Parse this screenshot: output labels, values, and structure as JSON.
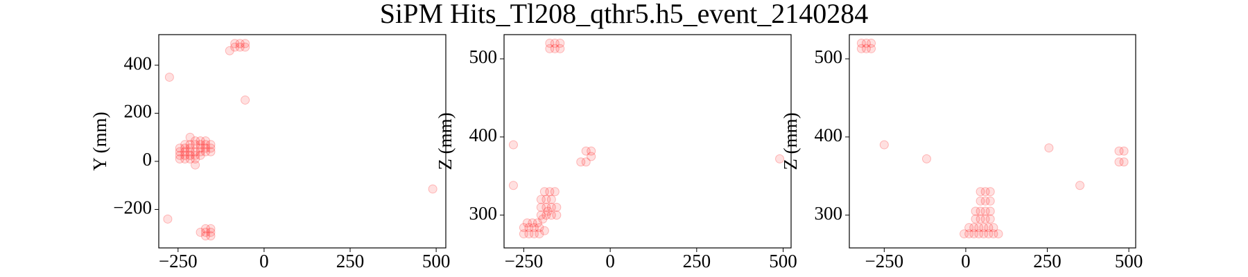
{
  "title": "SiPM Hits_Tl208_qthr5.h5_event_2140284",
  "chart_data": [
    {
      "type": "scatter",
      "ylabel": "Y (mm)",
      "color": "#ff0000",
      "x": [
        -245,
        -245,
        -245,
        -245,
        -230,
        -230,
        -230,
        -230,
        -230,
        -215,
        -215,
        -215,
        -215,
        -215,
        -200,
        -200,
        -200,
        -200,
        -200,
        -185,
        -185,
        -185,
        -185,
        -185,
        -170,
        -170,
        -170,
        -170,
        -155,
        -155,
        -155,
        -200,
        -215,
        -170,
        -170,
        -170,
        -155,
        -155,
        -155,
        -185,
        -85,
        -70,
        -55,
        -85,
        -70,
        -55,
        -100,
        -275,
        -55,
        -280,
        490
      ],
      "values": [
        10,
        25,
        40,
        55,
        10,
        25,
        40,
        55,
        70,
        10,
        25,
        40,
        55,
        70,
        10,
        25,
        40,
        70,
        85,
        25,
        40,
        55,
        70,
        85,
        40,
        55,
        70,
        85,
        40,
        55,
        70,
        -15,
        100,
        -280,
        -295,
        -310,
        -280,
        -295,
        -310,
        -295,
        490,
        490,
        490,
        475,
        475,
        475,
        460,
        350,
        255,
        -240,
        -115
      ],
      "xlim": [
        -306,
        528
      ],
      "xticks": [
        {
          "value": -250,
          "label": "−250"
        },
        0,
        250,
        500
      ],
      "ylim": [
        -360,
        527
      ],
      "yticks": [
        {
          "value": -200,
          "label": "−200"
        },
        0,
        200,
        400
      ]
    },
    {
      "type": "scatter",
      "ylabel": "Z (mm)",
      "color": "#ff0000",
      "x": [
        -250,
        -235,
        -220,
        -205,
        -250,
        -235,
        -220,
        -205,
        -190,
        -240,
        -225,
        -210,
        -200,
        -185,
        -170,
        -155,
        -200,
        -185,
        -170,
        -155,
        -200,
        -185,
        -170,
        -190,
        -175,
        -160,
        -195,
        -180,
        -175,
        -160,
        -145,
        -175,
        -160,
        -145,
        -70,
        -55,
        -85,
        -70,
        -55,
        -280,
        -280,
        490
      ],
      "values": [
        276,
        276,
        276,
        276,
        284,
        284,
        284,
        284,
        280,
        290,
        290,
        290,
        300,
        300,
        300,
        300,
        310,
        310,
        310,
        310,
        320,
        320,
        320,
        330,
        330,
        330,
        295,
        305,
        520,
        520,
        520,
        513,
        513,
        513,
        382,
        382,
        368,
        368,
        375,
        390,
        338,
        372
      ],
      "xlim": [
        -307,
        523
      ],
      "xticks": [
        {
          "value": -250,
          "label": "−250"
        },
        0,
        250,
        500
      ],
      "ylim": [
        258,
        531
      ],
      "yticks": [
        300,
        400,
        500
      ]
    },
    {
      "type": "scatter",
      "ylabel": "Z (mm)",
      "color": "#ff0000",
      "x": [
        -320,
        -305,
        -290,
        -320,
        -305,
        -290,
        -5,
        10,
        25,
        40,
        55,
        70,
        85,
        100,
        10,
        25,
        40,
        55,
        70,
        85,
        30,
        45,
        60,
        75,
        30,
        45,
        60,
        75,
        45,
        60,
        75,
        45,
        60,
        75,
        470,
        485,
        470,
        485,
        -250,
        -120,
        255,
        350
      ],
      "values": [
        520,
        520,
        520,
        513,
        513,
        513,
        276,
        276,
        276,
        276,
        276,
        276,
        276,
        276,
        284,
        284,
        284,
        284,
        284,
        284,
        295,
        295,
        295,
        295,
        305,
        305,
        305,
        305,
        318,
        318,
        318,
        330,
        330,
        330,
        382,
        382,
        368,
        368,
        390,
        372,
        386,
        338
      ],
      "xlim": [
        -357,
        521
      ],
      "xticks": [
        {
          "value": -250,
          "label": "−250"
        },
        0,
        250,
        500
      ],
      "ylim": [
        258,
        531
      ],
      "yticks": [
        300,
        400,
        500
      ]
    }
  ]
}
